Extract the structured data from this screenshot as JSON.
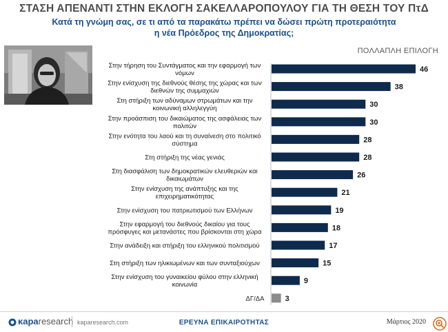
{
  "header": {
    "title": "ΣΤΑΣΗ ΑΠΕΝΑΝΤΙ ΣΤΗΝ ΕΚΛΟΓΗ ΣΑΚΕΛΛΑΡΟΠΟΥΛΟΥ ΓΙΑ ΤΗ ΘΕΣΗ ΤΟΥ ΠτΔ",
    "question_line1": "Κατά τη γνώμη σας, σε τι από τα παρακάτω πρέπει να δώσει πρώτη προτεραιότητα",
    "question_line2": "η νέα Πρόεδρος της Δημοκρατίας;"
  },
  "tag": "ΠΟΛΛΑΠΛΗ ΕΠΙΛΟΓΗ",
  "footer": {
    "logo_a": "κapa",
    "logo_b": "research",
    "site": "kaparesearch.com",
    "survey": "ΕΡΕΥΝΑ ΕΠΙΚΑΙΡΟΤΗΤΑΣ",
    "date": "Μάρτιος 2020"
  },
  "colors": {
    "bar": "#0e2a4d",
    "bar_na": "#8c8c8c",
    "title": "#4d4d4d",
    "accent": "#1a4f8c"
  },
  "chart_data": {
    "type": "bar",
    "orientation": "horizontal",
    "title": "ΣΤΑΣΗ ΑΠΕΝΑΝΤΙ ΣΤΗΝ ΕΚΛΟΓΗ ΣΑΚΕΛΛΑΡΟΠΟΥΛΟΥ ΓΙΑ ΤΗ ΘΕΣΗ ΤΟΥ ΠτΔ",
    "xlabel": "",
    "ylabel": "",
    "xlim": [
      0,
      46
    ],
    "grid": false,
    "categories": [
      [
        "Στην τήρηση του Συντάγματος και την εφαρμογή των",
        "νόμων"
      ],
      [
        "Στην ενίσχυση της διεθνούς θέσης της χώρας και των",
        "διεθνών της συμμαχιών"
      ],
      [
        "Στη στήριξη των αδύναμων στρωμάτων και την",
        "κοινωνική αλληλεγγύη"
      ],
      [
        "Στην προάσπιση του δικαιώματος της ασφάλειας των",
        "πολιτών"
      ],
      [
        "Στην ενότητα του λαού και τη συναίνεση στο πολιτικό",
        "σύστημα"
      ],
      [
        "Στη στήριξη της νέας γενιάς"
      ],
      [
        "Στη διασφάλιση των δημοκρατικών ελευθεριών και",
        "δικαιωμάτων"
      ],
      [
        "Στην ενίσχυση της ανάπτυξης και της",
        "επιχειρηματικότητας"
      ],
      [
        "Στην ενίσχυση του πατριωτισμού των Ελλήνων"
      ],
      [
        "Στην εφαρμογή του διεθνούς δικαίου για τους",
        "πρόσφυγες και μετανάστες που βρίσκονται στη χώρα"
      ],
      [
        "Στην ανάδειξη και στήριξη του ελληνικού πολιτισμού"
      ],
      [
        "Στη στήριξη των ηλικιωμένων και των συνταξιούχων"
      ],
      [
        "Στην ενίσχυση του γυναικείου φύλου στην ελληνική",
        "κοινωνία"
      ],
      [
        "ΔΓ/ΔΑ"
      ]
    ],
    "values": [
      46,
      38,
      30,
      30,
      28,
      28,
      26,
      21,
      19,
      18,
      17,
      15,
      9,
      3
    ]
  }
}
